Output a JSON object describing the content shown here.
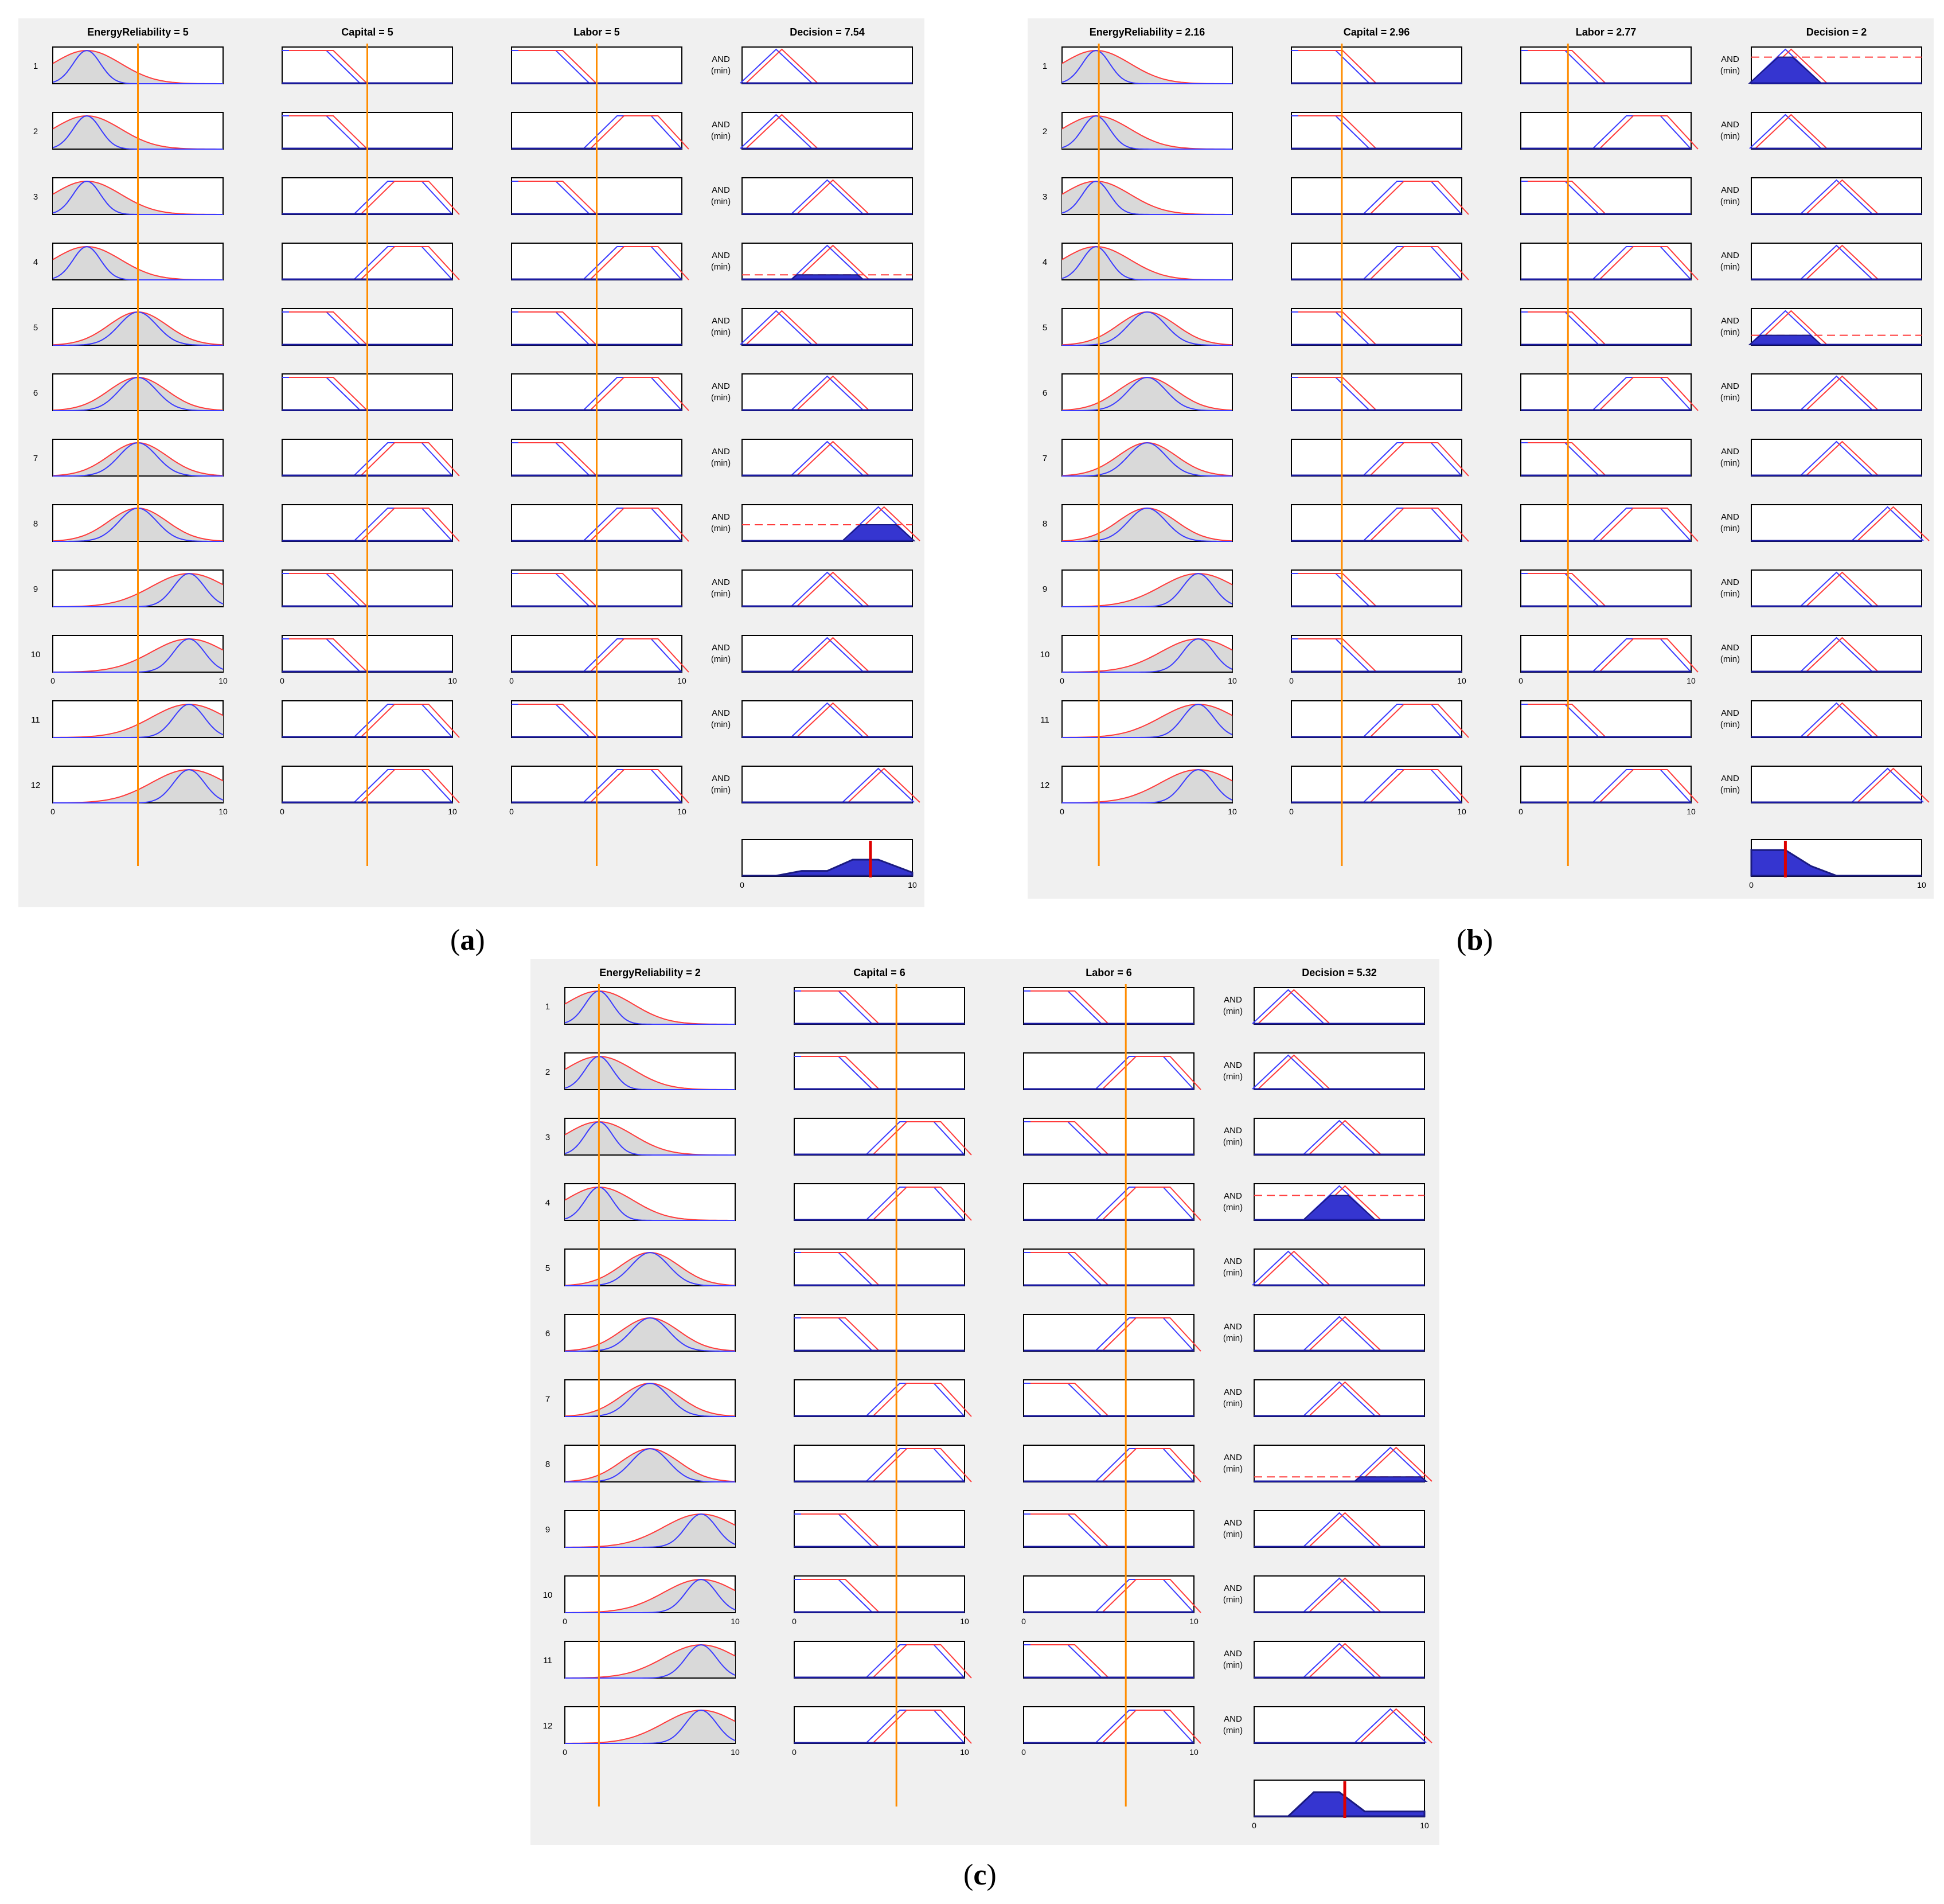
{
  "figure": {
    "and_label": "AND",
    "min_label": "(min)",
    "panels": [
      {
        "id": "a",
        "label": "a",
        "titles": [
          "EnergyReliability = 5",
          "Capital = 5",
          "Labor = 5",
          "Decision = 7.54"
        ],
        "inputs": [
          5,
          5,
          5
        ],
        "output": 7.54,
        "rule_numbers": [
          "1",
          "2",
          "3",
          "4",
          "5",
          "6",
          "7",
          "8",
          "9",
          "10",
          "11",
          "12"
        ],
        "axis_min": "0",
        "axis_max": "10",
        "firing": [
          0,
          0,
          0,
          0.15,
          0,
          0,
          0,
          0.5,
          0,
          0,
          0,
          0
        ],
        "aggregate_levels": [
          0,
          0,
          0.15,
          0.15,
          0.5,
          0.5,
          0.1
        ]
      },
      {
        "id": "b",
        "label": "b",
        "titles": [
          "EnergyReliability = 2.16",
          "Capital = 2.96",
          "Labor = 2.77",
          "Decision = 2"
        ],
        "inputs": [
          2.16,
          2.96,
          2.77
        ],
        "output": 2,
        "rule_numbers": [
          "1",
          "2",
          "3",
          "4",
          "5",
          "6",
          "7",
          "8",
          "9",
          "10",
          "11",
          "12"
        ],
        "axis_min": "0",
        "axis_max": "10",
        "firing": [
          0.8,
          0,
          0,
          0,
          0.3,
          0,
          0,
          0,
          0,
          0,
          0,
          0
        ],
        "aggregate_levels": [
          0.8,
          0.8,
          0.3,
          0,
          0,
          0,
          0
        ]
      },
      {
        "id": "c",
        "label": "c",
        "titles": [
          "EnergyReliability = 2",
          "Capital = 6",
          "Labor = 6",
          "Decision = 5.32"
        ],
        "inputs": [
          2,
          6,
          6
        ],
        "output": 5.32,
        "rule_numbers": [
          "1",
          "2",
          "3",
          "4",
          "5",
          "6",
          "7",
          "8",
          "9",
          "10",
          "11",
          "12"
        ],
        "axis_min": "0",
        "axis_max": "10",
        "firing": [
          0,
          0,
          0,
          0.75,
          0,
          0,
          0,
          0.15,
          0,
          0,
          0,
          0
        ],
        "aggregate_levels": [
          0,
          0,
          0.75,
          0.75,
          0.15,
          0.15,
          0.15
        ]
      }
    ]
  },
  "colors": {
    "panel_bg": "#f0f0f0",
    "input_line": "#ff8c00",
    "output_line": "#dd0000",
    "mf_red": "#ff3b3b",
    "mf_blue": "#3b3bff",
    "fill": "#d9d9d9",
    "fill_strong": "#3535d0"
  }
}
